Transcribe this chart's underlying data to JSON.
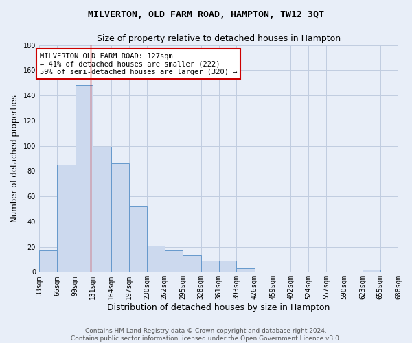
{
  "title": "MILVERTON, OLD FARM ROAD, HAMPTON, TW12 3QT",
  "subtitle": "Size of property relative to detached houses in Hampton",
  "xlabel": "Distribution of detached houses by size in Hampton",
  "ylabel": "Number of detached properties",
  "bar_values": [
    17,
    85,
    148,
    99,
    86,
    52,
    21,
    17,
    13,
    9,
    9,
    3,
    0,
    0,
    0,
    0,
    0,
    0,
    2,
    0
  ],
  "bin_edges": [
    33,
    66,
    99,
    131,
    164,
    197,
    230,
    262,
    295,
    328,
    361,
    393,
    426,
    459,
    492,
    524,
    557,
    590,
    623,
    655,
    688
  ],
  "tick_labels": [
    "33sqm",
    "66sqm",
    "99sqm",
    "131sqm",
    "164sqm",
    "197sqm",
    "230sqm",
    "262sqm",
    "295sqm",
    "328sqm",
    "361sqm",
    "393sqm",
    "426sqm",
    "459sqm",
    "492sqm",
    "524sqm",
    "557sqm",
    "590sqm",
    "623sqm",
    "655sqm",
    "688sqm"
  ],
  "bar_color": "#ccd9ee",
  "bar_edge_color": "#6699cc",
  "grid_color": "#c0cce0",
  "background_color": "#e8eef8",
  "vline_x": 127,
  "vline_color": "#cc0000",
  "annotation_text": "MILVERTON OLD FARM ROAD: 127sqm\n← 41% of detached houses are smaller (222)\n59% of semi-detached houses are larger (320) →",
  "annotation_box_color": "#ffffff",
  "annotation_box_edge": "#cc0000",
  "ylim": [
    0,
    180
  ],
  "yticks": [
    0,
    20,
    40,
    60,
    80,
    100,
    120,
    140,
    160,
    180
  ],
  "footer_text": "Contains HM Land Registry data © Crown copyright and database right 2024.\nContains public sector information licensed under the Open Government Licence v3.0.",
  "title_fontsize": 9.5,
  "subtitle_fontsize": 9,
  "xlabel_fontsize": 9,
  "ylabel_fontsize": 8.5,
  "tick_fontsize": 7,
  "annotation_fontsize": 7.5,
  "footer_fontsize": 6.5
}
